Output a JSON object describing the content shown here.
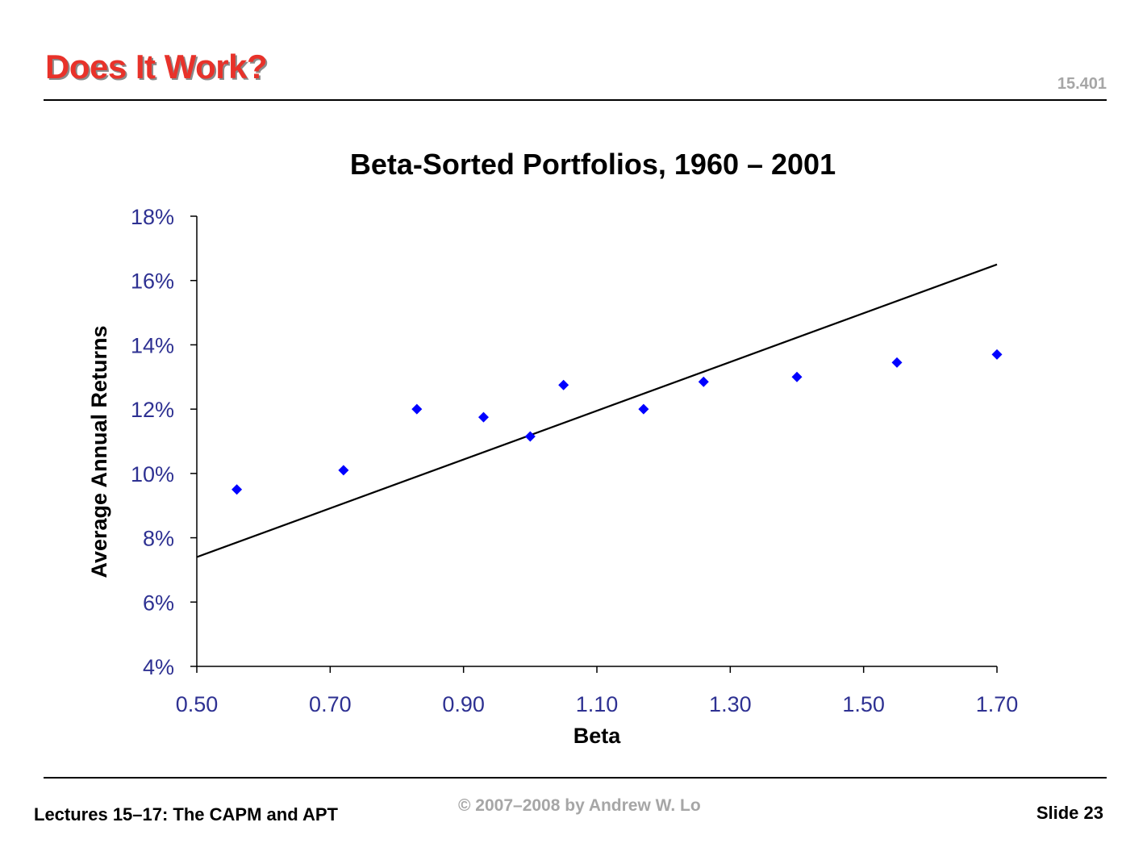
{
  "slide": {
    "title": "Does It Work?",
    "course_code": "15.401",
    "footer_left": "Lectures 15–17: The CAPM and APT",
    "footer_center": "© 2007–2008 by Andrew W. Lo",
    "footer_right": "Slide 23"
  },
  "colors": {
    "title": "#e8322a",
    "tick_labels": "#2e3192",
    "points": "#0000ff",
    "line": "#000000"
  },
  "chart_data": {
    "type": "scatter",
    "title": "Beta-Sorted Portfolios, 1960 – 2001",
    "xlabel": "Beta",
    "ylabel": "Average Annual Returns",
    "xlim": [
      0.5,
      1.7
    ],
    "ylim": [
      0.04,
      0.18
    ],
    "x_ticks": [
      0.5,
      0.7,
      0.9,
      1.1,
      1.3,
      1.5,
      1.7
    ],
    "x_tick_labels": [
      "0.50",
      "0.70",
      "0.90",
      "1.10",
      "1.30",
      "1.50",
      "1.70"
    ],
    "y_ticks": [
      0.04,
      0.06,
      0.08,
      0.1,
      0.12,
      0.14,
      0.16,
      0.18
    ],
    "y_tick_labels": [
      "4%",
      "6%",
      "8%",
      "10%",
      "12%",
      "14%",
      "16%",
      "18%"
    ],
    "grid": false,
    "legend": "none",
    "series": [
      {
        "type": "scatter",
        "marker": "diamond",
        "x": [
          0.56,
          0.72,
          0.83,
          0.93,
          1.0,
          1.05,
          1.17,
          1.26,
          1.4,
          1.55,
          1.7
        ],
        "y": [
          0.095,
          0.101,
          0.12,
          0.1175,
          0.1115,
          0.1275,
          0.12,
          0.1285,
          0.13,
          0.1345,
          0.137
        ]
      },
      {
        "type": "line",
        "x": [
          0.5,
          1.7
        ],
        "y": [
          0.074,
          0.165
        ]
      }
    ]
  }
}
